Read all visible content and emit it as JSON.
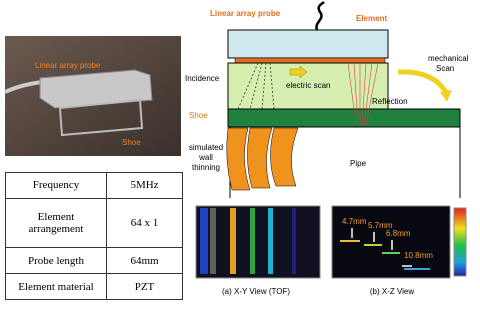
{
  "photo": {
    "probe_label": "Linear array probe",
    "shoe_label": "Shoe"
  },
  "table": {
    "rows": [
      [
        "Frequency",
        "5MHz"
      ],
      [
        "Element arrangement",
        "64 x 1"
      ],
      [
        "Probe length",
        "64mm"
      ],
      [
        "Element material",
        "PZT"
      ]
    ]
  },
  "diagram": {
    "probe": "Linear array probe",
    "element": "Element",
    "mechanical_scan": [
      "mechanical",
      "Scan"
    ],
    "incidence": "Incidence",
    "electric_scan": "electric scan",
    "reflection": "Reflection",
    "shoe": "Shoe",
    "thinning": [
      "simulated",
      "wall",
      "thinning"
    ],
    "pipe": "Pipe"
  },
  "views": {
    "xy_caption": "(a) X-Y View (TOF)",
    "xz_caption": "(b) X-Z View",
    "xz_labels": [
      "4.7mm",
      "5.7mm",
      "6.8mm",
      "10.8mm"
    ]
  }
}
